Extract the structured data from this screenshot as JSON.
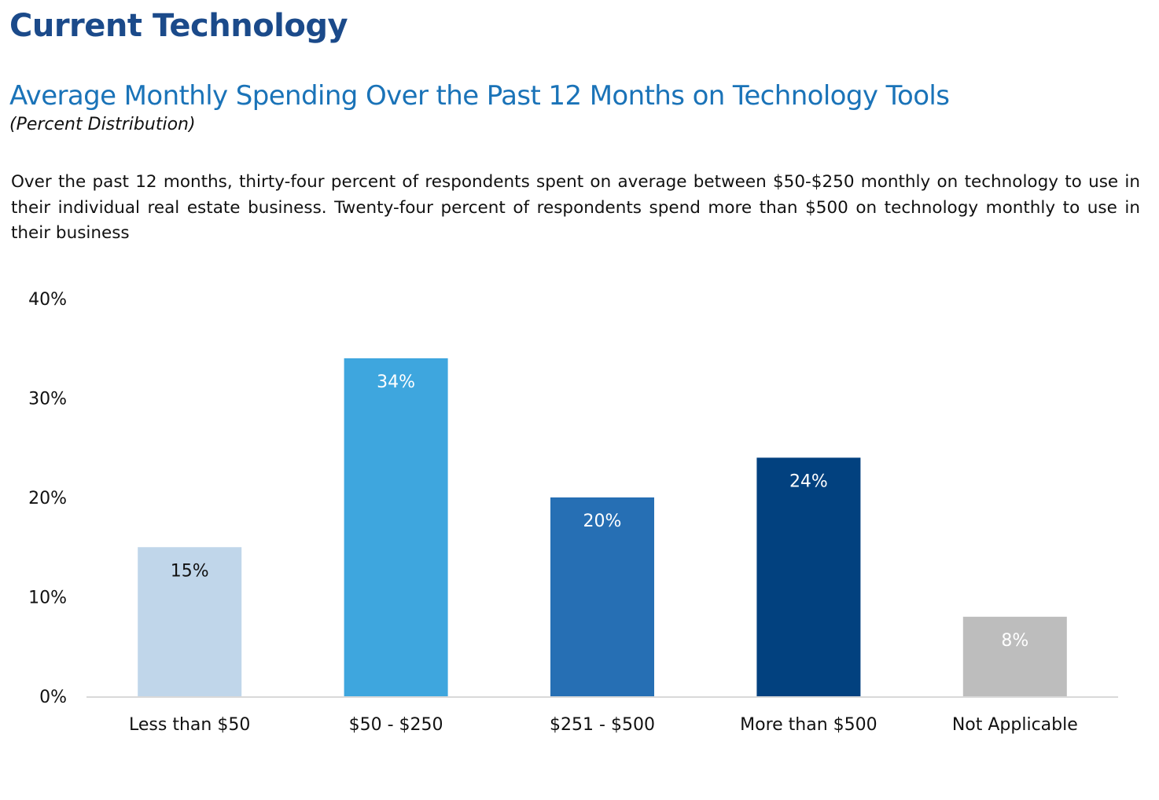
{
  "page": {
    "title": "Current Technology"
  },
  "description": "Over the past 12 months, thirty-four percent of respondents spent on average between $50-$250 monthly on technology to use in their individual real estate business. Twenty-four percent of respondents spend more than $500 on technology monthly to use in their business",
  "chart_data": {
    "type": "bar",
    "title": "Average Monthly Spending Over the Past 12 Months on Technology Tools",
    "subtitle": "(Percent Distribution)",
    "xlabel": "",
    "ylabel": "",
    "categories": [
      "Less than $50",
      "$50 - $250",
      "$251 - $500",
      "More than $500",
      "Not Applicable"
    ],
    "values": [
      15,
      34,
      20,
      24,
      8
    ],
    "data_labels": [
      "15%",
      "34%",
      "20%",
      "24%",
      "8%"
    ],
    "bar_colors": [
      "#c0d6ea",
      "#3ea6de",
      "#266fb4",
      "#02417f",
      "#bdbdbd"
    ],
    "label_colors": [
      "#111111",
      "#ffffff",
      "#ffffff",
      "#ffffff",
      "#ffffff"
    ],
    "ylim": [
      0,
      40
    ],
    "yticks": [
      0,
      10,
      20,
      30,
      40
    ],
    "ytick_labels": [
      "0%",
      "10%",
      "20%",
      "30%",
      "40%"
    ],
    "grid": false,
    "legend": "none"
  }
}
